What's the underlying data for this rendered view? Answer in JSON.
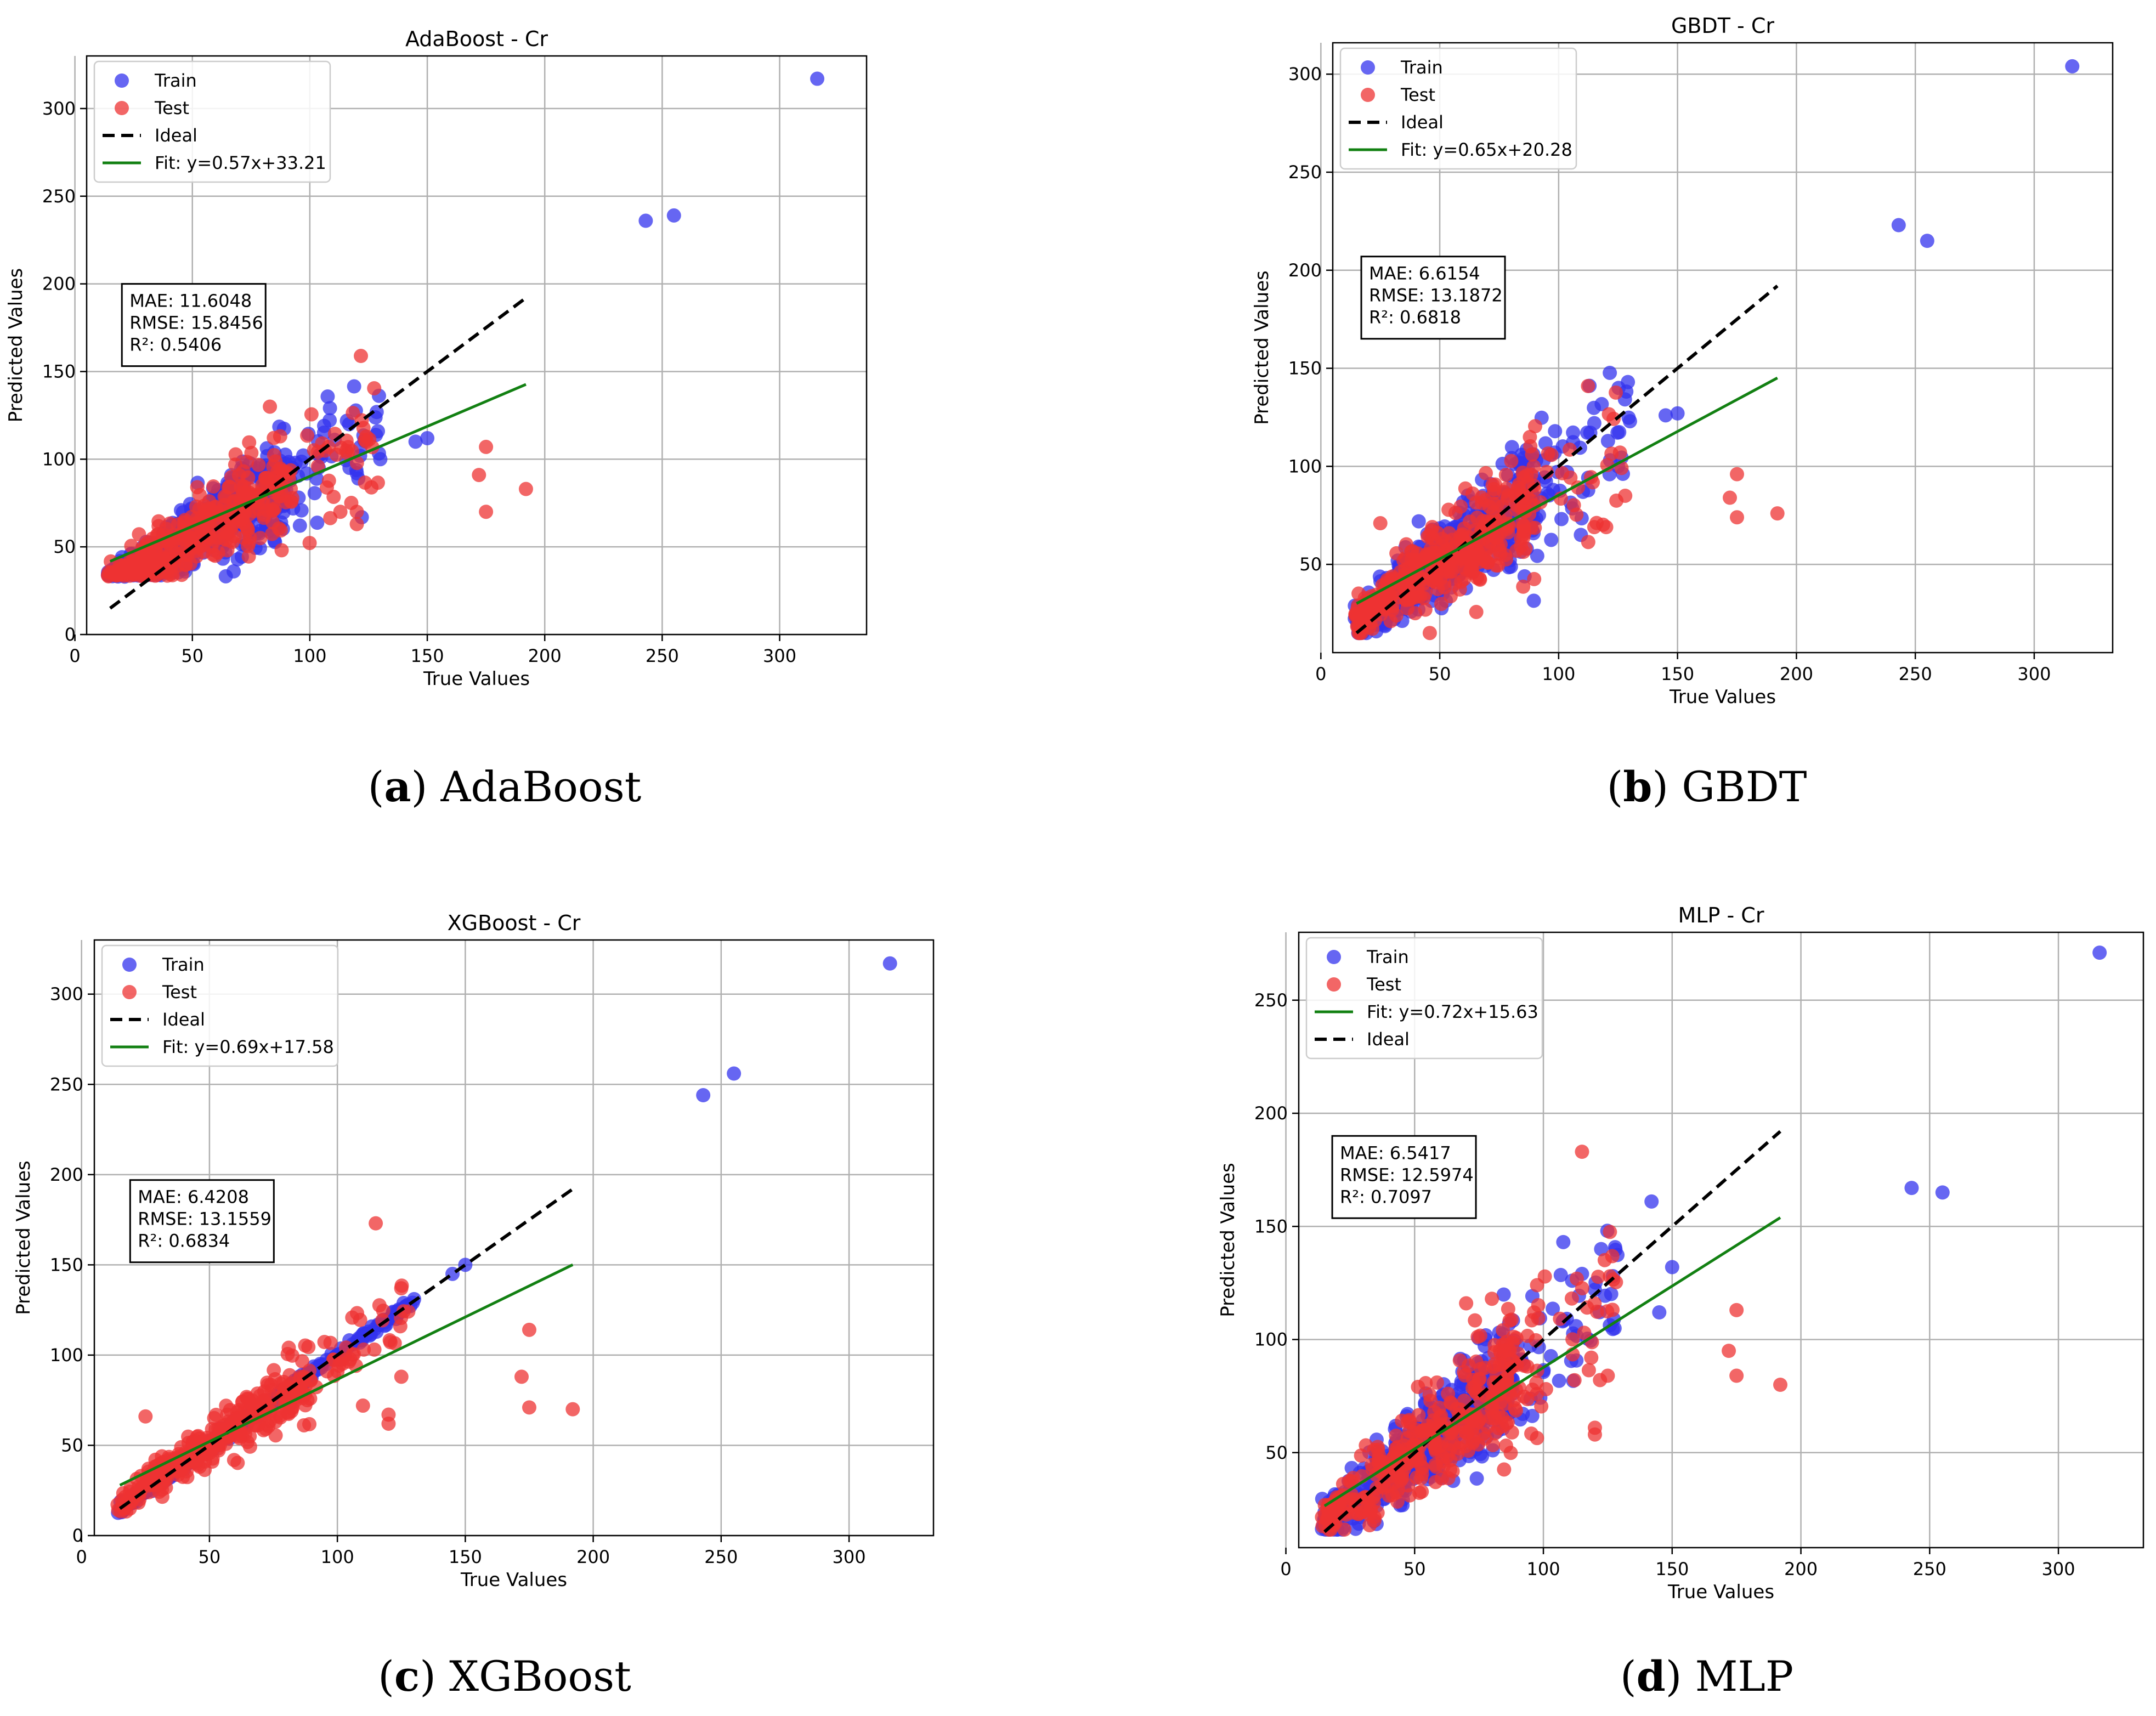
{
  "figure": {
    "captions": [
      {
        "letter": "a",
        "name": "AdaBoost"
      },
      {
        "letter": "b",
        "name": "GBDT"
      },
      {
        "letter": "c",
        "name": "XGBoost"
      },
      {
        "letter": "d",
        "name": "MLP"
      }
    ]
  },
  "colors": {
    "train": "#3333ee",
    "test": "#ee3333",
    "ideal": "#000000",
    "fit": "#128012",
    "grid": "#b0b0b0"
  },
  "chart_data": [
    {
      "type": "scatter",
      "title": "AdaBoost - Cr",
      "xlabel": "True Values",
      "ylabel": "Predicted Values",
      "xlim": [
        5,
        337
      ],
      "ylim": [
        0,
        330
      ],
      "xticks": [
        0,
        50,
        100,
        150,
        200,
        250,
        300
      ],
      "yticks": [
        0,
        50,
        100,
        150,
        200,
        250,
        300
      ],
      "grid": true,
      "legend_position": "top-left",
      "legend": [
        "Train",
        "Test",
        "Ideal",
        "Fit: y=0.57x+33.21"
      ],
      "legend_kinds": [
        "train",
        "test",
        "ideal",
        "fit"
      ],
      "metrics": [
        "MAE: 11.6048",
        "RMSE: 15.8456",
        "R²: 0.5406"
      ],
      "metrics_anchor": [
        20,
        200
      ],
      "fit": {
        "slope": 0.57,
        "intercept": 33.21
      },
      "ideal_range": [
        15,
        192
      ],
      "fit_range": [
        15,
        192
      ],
      "cluster": {
        "floor": 33
      },
      "train_outliers": [
        [
          316,
          317
        ],
        [
          243,
          236
        ],
        [
          255,
          239
        ],
        [
          150,
          112
        ],
        [
          145,
          110
        ],
        [
          130,
          100
        ],
        [
          120,
          92
        ]
      ],
      "test_outliers": [
        [
          175,
          107
        ],
        [
          172,
          91
        ],
        [
          175,
          70
        ],
        [
          192,
          83
        ],
        [
          120,
          70
        ],
        [
          120,
          63
        ],
        [
          113,
          70
        ],
        [
          108,
          107
        ]
      ]
    },
    {
      "type": "scatter",
      "title": "GBDT - Cr",
      "xlabel": "True Values",
      "ylabel": "Predicted Values",
      "xlim": [
        5,
        333
      ],
      "ylim": [
        5,
        316
      ],
      "xticks": [
        0,
        50,
        100,
        150,
        200,
        250,
        300
      ],
      "yticks": [
        50,
        100,
        150,
        200,
        250,
        300
      ],
      "grid": true,
      "legend_position": "top-left",
      "legend": [
        "Train",
        "Test",
        "Ideal",
        "Fit: y=0.65x+20.28"
      ],
      "legend_kinds": [
        "train",
        "test",
        "ideal",
        "fit"
      ],
      "metrics": [
        "MAE: 6.6154",
        "RMSE: 13.1872",
        "R²: 0.6818"
      ],
      "metrics_anchor": [
        17,
        207
      ],
      "fit": {
        "slope": 0.65,
        "intercept": 20.28
      },
      "ideal_range": [
        15,
        192
      ],
      "fit_range": [
        15,
        192
      ],
      "cluster": {
        "floor": 15
      },
      "train_outliers": [
        [
          316,
          304
        ],
        [
          243,
          223
        ],
        [
          255,
          215
        ],
        [
          150,
          127
        ],
        [
          145,
          126
        ],
        [
          130,
          123
        ],
        [
          115,
          122
        ],
        [
          125,
          100
        ]
      ],
      "test_outliers": [
        [
          175,
          96
        ],
        [
          172,
          84
        ],
        [
          175,
          74
        ],
        [
          192,
          76
        ],
        [
          115,
          69
        ],
        [
          120,
          69
        ],
        [
          128,
          85
        ],
        [
          25,
          71
        ]
      ]
    },
    {
      "type": "scatter",
      "title": "XGBoost - Cr",
      "xlabel": "True Values",
      "ylabel": "Predicted Values",
      "xlim": [
        5,
        333
      ],
      "ylim": [
        0,
        330
      ],
      "xticks": [
        0,
        50,
        100,
        150,
        200,
        250,
        300
      ],
      "yticks": [
        0,
        50,
        100,
        150,
        200,
        250,
        300
      ],
      "grid": true,
      "legend_position": "top-left",
      "legend": [
        "Train",
        "Test",
        "Ideal",
        "Fit: y=0.69x+17.58"
      ],
      "legend_kinds": [
        "train",
        "test",
        "ideal",
        "fit"
      ],
      "metrics": [
        "MAE: 6.4208",
        "RMSE: 13.1559",
        "R²: 0.6834"
      ],
      "metrics_anchor": [
        19,
        197
      ],
      "fit": {
        "slope": 0.69,
        "intercept": 17.58
      },
      "ideal_range": [
        15,
        192
      ],
      "fit_range": [
        15,
        192
      ],
      "cluster": {
        "floor": 12
      },
      "train_outliers": [
        [
          316,
          317
        ],
        [
          243,
          244
        ],
        [
          255,
          256
        ],
        [
          150,
          150
        ],
        [
          145,
          145
        ],
        [
          130,
          131
        ],
        [
          125,
          125
        ],
        [
          120,
          120
        ],
        [
          110,
          110
        ],
        [
          100,
          100
        ]
      ],
      "test_outliers": [
        [
          115,
          173
        ],
        [
          175,
          114
        ],
        [
          172,
          88
        ],
        [
          175,
          71
        ],
        [
          192,
          70
        ],
        [
          120,
          62
        ],
        [
          120,
          67
        ],
        [
          125,
          88
        ],
        [
          110,
          72
        ],
        [
          25,
          66
        ]
      ]
    },
    {
      "type": "scatter",
      "title": "MLP - Cr",
      "xlabel": "True Values",
      "ylabel": "Predicted Values",
      "xlim": [
        5,
        333
      ],
      "ylim": [
        8,
        280
      ],
      "xticks": [
        0,
        50,
        100,
        150,
        200,
        250,
        300
      ],
      "yticks": [
        50,
        100,
        150,
        200,
        250
      ],
      "grid": true,
      "legend_position": "top-left",
      "legend": [
        "Train",
        "Test",
        "Fit: y=0.72x+15.63",
        "Ideal"
      ],
      "legend_kinds": [
        "train",
        "test",
        "fit",
        "ideal"
      ],
      "metrics": [
        "MAE: 6.5417",
        "RMSE: 12.5974",
        "R²: 0.7097"
      ],
      "metrics_anchor": [
        18,
        190
      ],
      "fit": {
        "slope": 0.72,
        "intercept": 15.63
      },
      "ideal_range": [
        15,
        192
      ],
      "fit_range": [
        15,
        192
      ],
      "cluster": {
        "floor": 16
      },
      "train_outliers": [
        [
          316,
          271
        ],
        [
          243,
          167
        ],
        [
          255,
          165
        ],
        [
          142,
          161
        ],
        [
          150,
          132
        ],
        [
          127,
          128
        ],
        [
          115,
          129
        ],
        [
          145,
          112
        ],
        [
          120,
          122
        ]
      ],
      "test_outliers": [
        [
          115,
          183
        ],
        [
          175,
          113
        ],
        [
          172,
          95
        ],
        [
          175,
          84
        ],
        [
          192,
          80
        ],
        [
          120,
          61
        ],
        [
          120,
          58
        ],
        [
          80,
          118
        ],
        [
          70,
          116
        ],
        [
          125,
          84
        ]
      ]
    }
  ]
}
